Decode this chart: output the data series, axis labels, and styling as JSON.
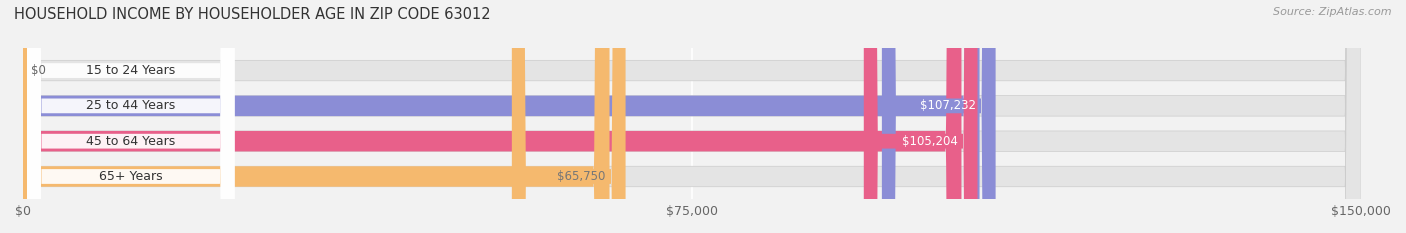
{
  "title": "HOUSEHOLD INCOME BY HOUSEHOLDER AGE IN ZIP CODE 63012",
  "source": "Source: ZipAtlas.com",
  "categories": [
    "15 to 24 Years",
    "25 to 44 Years",
    "45 to 64 Years",
    "65+ Years"
  ],
  "values": [
    0,
    107232,
    105204,
    65750
  ],
  "labels": [
    "$0",
    "$107,232",
    "$105,204",
    "$65,750"
  ],
  "bar_colors": [
    "#74cece",
    "#8b8dd6",
    "#e8608a",
    "#f5b96e"
  ],
  "label_colors": [
    "#777777",
    "#ffffff",
    "#ffffff",
    "#777777"
  ],
  "xlim": [
    0,
    150000
  ],
  "xticks": [
    0,
    75000,
    150000
  ],
  "xticklabels": [
    "$0",
    "$75,000",
    "$150,000"
  ],
  "background_color": "#f2f2f2",
  "bar_background_color": "#e4e4e4",
  "title_fontsize": 10.5,
  "source_fontsize": 8,
  "tick_fontsize": 9,
  "label_fontsize": 8.5,
  "category_fontsize": 9,
  "bar_height": 0.58,
  "label_threshold": 0.12
}
